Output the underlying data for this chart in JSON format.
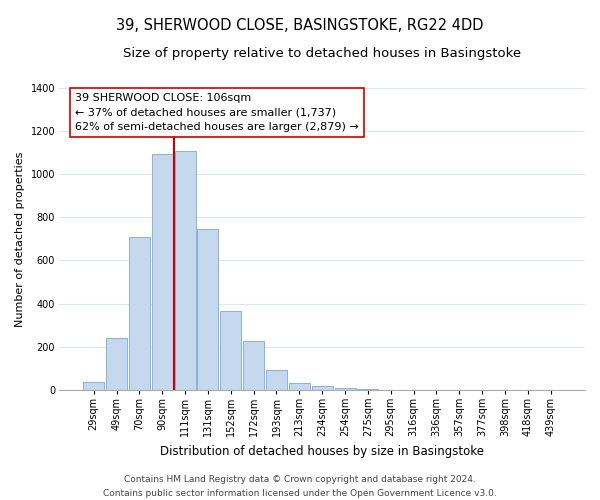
{
  "title": "39, SHERWOOD CLOSE, BASINGSTOKE, RG22 4DD",
  "subtitle": "Size of property relative to detached houses in Basingstoke",
  "xlabel": "Distribution of detached houses by size in Basingstoke",
  "ylabel": "Number of detached properties",
  "bar_labels": [
    "29sqm",
    "49sqm",
    "70sqm",
    "90sqm",
    "111sqm",
    "131sqm",
    "152sqm",
    "172sqm",
    "193sqm",
    "213sqm",
    "234sqm",
    "254sqm",
    "275sqm",
    "295sqm",
    "316sqm",
    "336sqm",
    "357sqm",
    "377sqm",
    "398sqm",
    "418sqm",
    "439sqm"
  ],
  "bar_values": [
    35,
    240,
    710,
    1095,
    1110,
    745,
    365,
    225,
    90,
    32,
    18,
    8,
    3,
    0,
    0,
    0,
    0,
    0,
    0,
    0,
    0
  ],
  "bar_color": "#c5d8ed",
  "bar_edge_color": "#8ab4d4",
  "vline_x": 3.5,
  "vline_color": "#cc0000",
  "annotation_text": "39 SHERWOOD CLOSE: 106sqm\n← 37% of detached houses are smaller (1,737)\n62% of semi-detached houses are larger (2,879) →",
  "annotation_box_color": "#ffffff",
  "annotation_box_edgecolor": "#cc0000",
  "ylim": [
    0,
    1400
  ],
  "yticks": [
    0,
    200,
    400,
    600,
    800,
    1000,
    1200,
    1400
  ],
  "footer_line1": "Contains HM Land Registry data © Crown copyright and database right 2024.",
  "footer_line2": "Contains public sector information licensed under the Open Government Licence v3.0.",
  "bg_color": "#ffffff",
  "grid_color": "#dce8f2",
  "title_fontsize": 10.5,
  "subtitle_fontsize": 9.5,
  "xlabel_fontsize": 8.5,
  "ylabel_fontsize": 8.0,
  "tick_fontsize": 7.0,
  "annotation_fontsize": 8.0,
  "footer_fontsize": 6.5
}
